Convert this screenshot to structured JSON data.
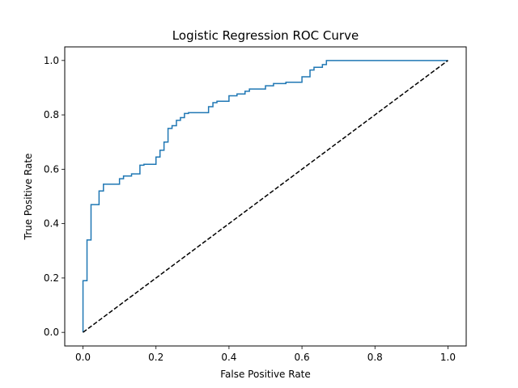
{
  "chart_data": {
    "type": "line",
    "title": "Logistic Regression ROC Curve",
    "xlabel": "False Positive Rate",
    "ylabel": "True Positive Rate",
    "xlim": [
      -0.05,
      1.05
    ],
    "ylim": [
      -0.05,
      1.05
    ],
    "xticks": [
      0.0,
      0.2,
      0.4,
      0.6,
      0.8,
      1.0
    ],
    "yticks": [
      0.0,
      0.2,
      0.4,
      0.6,
      0.8,
      1.0
    ],
    "xtick_labels": [
      "0.0",
      "0.2",
      "0.4",
      "0.6",
      "0.8",
      "1.0"
    ],
    "ytick_labels": [
      "0.0",
      "0.2",
      "0.4",
      "0.6",
      "0.8",
      "1.0"
    ],
    "grid": false,
    "legend": "none",
    "series": [
      {
        "color": "#1f77b4",
        "style": "solid",
        "x": [
          0.0,
          0.0,
          0.011,
          0.011,
          0.022,
          0.022,
          0.044,
          0.044,
          0.056,
          0.056,
          0.1,
          0.1,
          0.111,
          0.111,
          0.133,
          0.133,
          0.156,
          0.156,
          0.167,
          0.167,
          0.2,
          0.2,
          0.211,
          0.211,
          0.222,
          0.222,
          0.233,
          0.233,
          0.244,
          0.244,
          0.256,
          0.256,
          0.267,
          0.267,
          0.278,
          0.278,
          0.289,
          0.289,
          0.344,
          0.344,
          0.356,
          0.356,
          0.367,
          0.367,
          0.4,
          0.4,
          0.422,
          0.422,
          0.444,
          0.444,
          0.456,
          0.456,
          0.5,
          0.5,
          0.522,
          0.522,
          0.556,
          0.556,
          0.6,
          0.6,
          0.622,
          0.622,
          0.633,
          0.633,
          0.656,
          0.656,
          0.667,
          0.667,
          0.689,
          0.689,
          1.0
        ],
        "y": [
          0.0,
          0.19,
          0.19,
          0.34,
          0.34,
          0.47,
          0.47,
          0.52,
          0.52,
          0.545,
          0.545,
          0.565,
          0.565,
          0.575,
          0.575,
          0.583,
          0.583,
          0.615,
          0.615,
          0.618,
          0.618,
          0.645,
          0.645,
          0.67,
          0.67,
          0.7,
          0.7,
          0.75,
          0.75,
          0.76,
          0.76,
          0.78,
          0.78,
          0.79,
          0.79,
          0.805,
          0.805,
          0.808,
          0.808,
          0.83,
          0.83,
          0.845,
          0.845,
          0.85,
          0.85,
          0.87,
          0.87,
          0.877,
          0.877,
          0.887,
          0.887,
          0.895,
          0.895,
          0.907,
          0.907,
          0.915,
          0.915,
          0.92,
          0.92,
          0.94,
          0.94,
          0.965,
          0.965,
          0.975,
          0.975,
          0.985,
          0.985,
          1.0,
          1.0,
          1.0,
          1.0
        ]
      },
      {
        "color": "#000000",
        "style": "dashed",
        "x": [
          0.0,
          1.0
        ],
        "y": [
          0.0,
          1.0
        ]
      }
    ]
  }
}
